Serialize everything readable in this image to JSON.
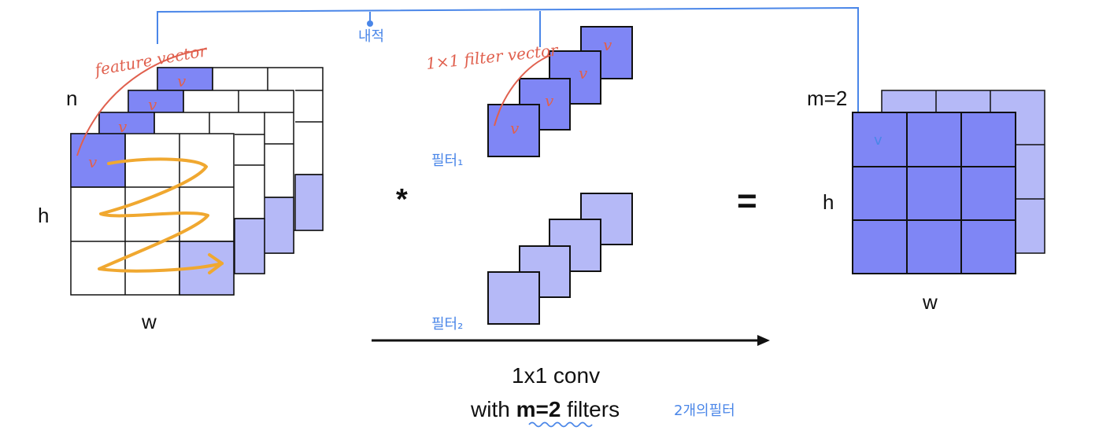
{
  "labels": {
    "input_n": "n",
    "input_h": "h",
    "input_w": "w",
    "output_m": "m=2",
    "output_h": "h",
    "output_w": "w",
    "feature_vector": "feature vector",
    "filter_vector": "1×1 filter vector",
    "dot_product": "내적",
    "filter1": "필터₁",
    "filter2": "필터₂",
    "conv_op": "*",
    "equals": "=",
    "caption_line1": "1x1 conv",
    "caption_with": "with ",
    "caption_m": "m=2",
    "caption_filters": " filters",
    "two_filters_note": "2개의필터",
    "check": "v"
  },
  "colors": {
    "dark_blue": "#7f86f5",
    "light_blue": "#b5b9f7",
    "red_note": "#e0604e",
    "blue_note": "#4a86e8",
    "orange": "#f0a830",
    "grid": "#111111"
  }
}
